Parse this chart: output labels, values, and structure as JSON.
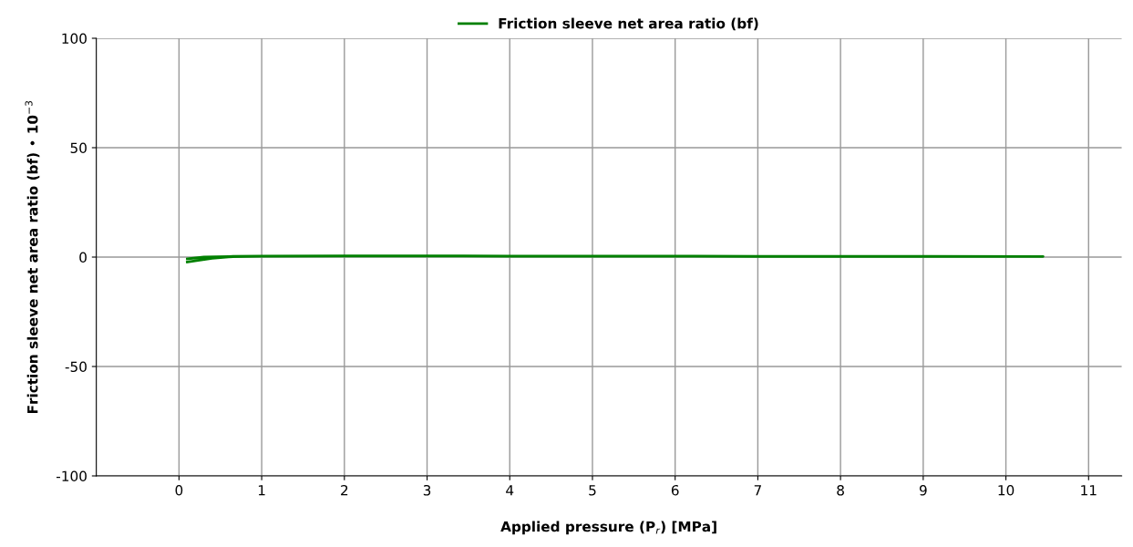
{
  "chart_data": {
    "type": "line",
    "xlabel": "Applied pressure (P$_{r}$) [MPa]",
    "ylabel": "Friction sleeve net area ratio (bf) • 10$^{−3}$",
    "x": [
      0.1,
      0.3,
      0.6,
      1,
      2,
      4,
      7,
      10.45,
      7,
      4,
      2,
      1,
      0.6,
      0.4,
      0.25,
      0.1
    ],
    "series": [
      {
        "name": "Friction sleeve net area ratio (bf)",
        "color": "#008000",
        "values": [
          -0.8,
          0,
          0.3,
          0.5,
          0.6,
          0.5,
          0.4,
          0.3,
          0.3,
          0.4,
          0.5,
          0.4,
          0.1,
          -0.6,
          -1.4,
          -2.3
        ]
      }
    ],
    "xlim": [
      -1,
      11.4
    ],
    "xticks": [
      0,
      1,
      2,
      3,
      4,
      5,
      6,
      7,
      8,
      9,
      10,
      11
    ],
    "ylim": [
      -100,
      100
    ],
    "yticks": [
      -100,
      -50,
      0,
      50,
      100
    ],
    "grid": true,
    "legend": "top",
    "marker": "none",
    "line_style": "solid"
  }
}
